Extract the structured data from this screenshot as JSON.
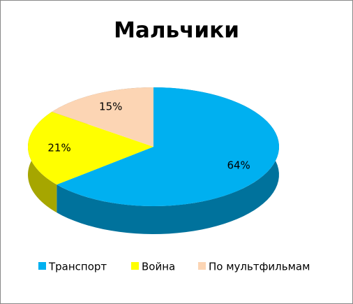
{
  "chart_data": {
    "type": "pie",
    "title": "Мальчики",
    "categories": [
      "Транспорт",
      "Война",
      "По мультфильмам"
    ],
    "values": [
      64,
      21,
      15
    ],
    "value_labels": [
      "64%",
      "21%",
      "15%"
    ],
    "colors": [
      "#00b0f0",
      "#ffff00",
      "#fcd5b4"
    ],
    "legend": "bottom"
  }
}
